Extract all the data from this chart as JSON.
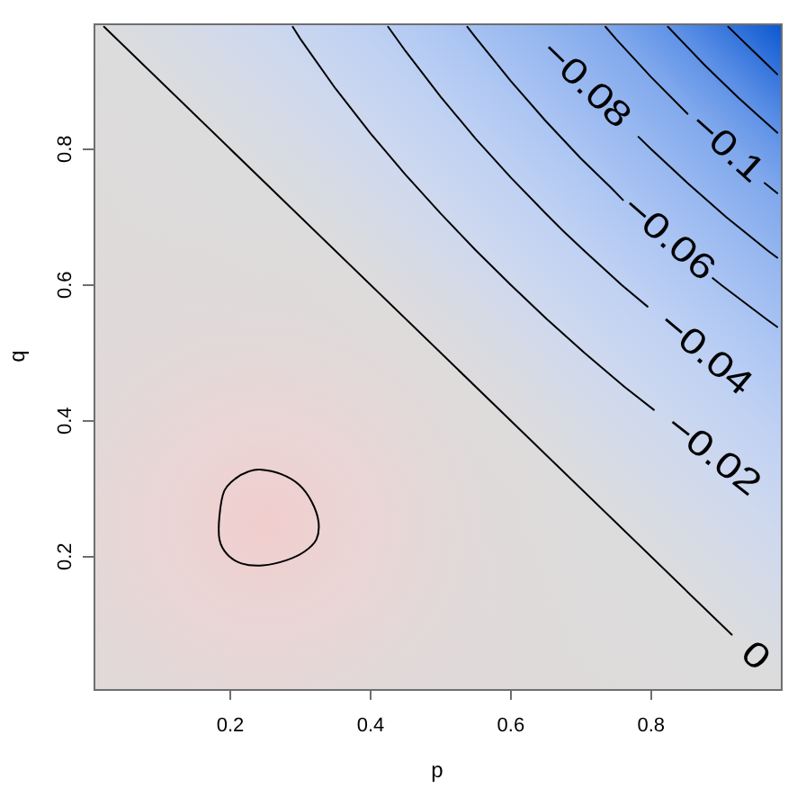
{
  "chart_data": {
    "type": "line",
    "xlabel": "p",
    "ylabel": "q",
    "xlim": [
      0.005,
      0.985
    ],
    "ylim": [
      0.005,
      0.985
    ],
    "xticks": [
      0.2,
      0.4,
      0.6,
      0.8
    ],
    "yticks": [
      0.2,
      0.4,
      0.6,
      0.8
    ],
    "marker": "none",
    "line_style": "solid",
    "series": [
      {
        "name": "0",
        "color": "#000000",
        "x": [
          0.02,
          0.915
        ],
        "values": [
          0.98,
          0.085
        ]
      },
      {
        "name": "−0.02",
        "color": "#000000",
        "x": [
          0.289,
          0.3,
          0.35,
          0.4,
          0.45,
          0.5,
          0.55,
          0.6,
          0.651,
          0.705,
          0.762,
          0.804
        ],
        "values": [
          0.98,
          0.962,
          0.889,
          0.823,
          0.762,
          0.705,
          0.651,
          0.6,
          0.55,
          0.5,
          0.45,
          0.416
        ]
      },
      {
        "name": "−0.04",
        "color": "#000000",
        "x": [
          0.425,
          0.45,
          0.5,
          0.55,
          0.6,
          0.65,
          0.677,
          0.705,
          0.758,
          0.795
        ],
        "values": [
          0.98,
          0.944,
          0.877,
          0.815,
          0.758,
          0.705,
          0.677,
          0.65,
          0.6,
          0.568
        ]
      },
      {
        "name": "−0.06",
        "color": "#000000",
        "x": [
          0.538,
          0.55,
          0.6,
          0.65,
          0.7,
          0.743,
          0.76,
          0.824,
          0.888,
          0.9,
          0.964,
          0.98
        ],
        "values": [
          0.98,
          0.964,
          0.9,
          0.841,
          0.786,
          0.743,
          0.725,
          null,
          0.61,
          0.6,
          0.55,
          0.538
        ]
      },
      {
        "name": "−0.08",
        "color": "#000000",
        "x": [
          0.782,
          0.8,
          0.852,
          0.907,
          0.967,
          0.98
        ],
        "values": [
          0.818,
          0.8,
          0.75,
          0.7,
          0.65,
          0.64
        ]
      },
      {
        "name": "−0.1",
        "color": "#000000",
        "x": [
          0.735,
          0.75,
          0.8,
          0.852,
          0.907,
          0.962,
          0.98
        ],
        "values": [
          0.98,
          0.962,
          0.906,
          0.852,
          null,
          0.75,
          0.735
        ]
      },
      {
        "color": "#000000",
        "x": [
          0.824,
          0.85,
          0.875,
          0.9,
          0.925,
          0.952,
          0.98
        ],
        "values": [
          0.98,
          0.952,
          0.925,
          0.9,
          0.875,
          0.85,
          0.824
        ]
      },
      {
        "color": "#000000",
        "x": [
          0.91,
          0.925,
          0.945,
          0.965,
          0.98
        ],
        "values": [
          0.98,
          0.965,
          0.945,
          0.925,
          0.91
        ]
      }
    ]
  }
}
